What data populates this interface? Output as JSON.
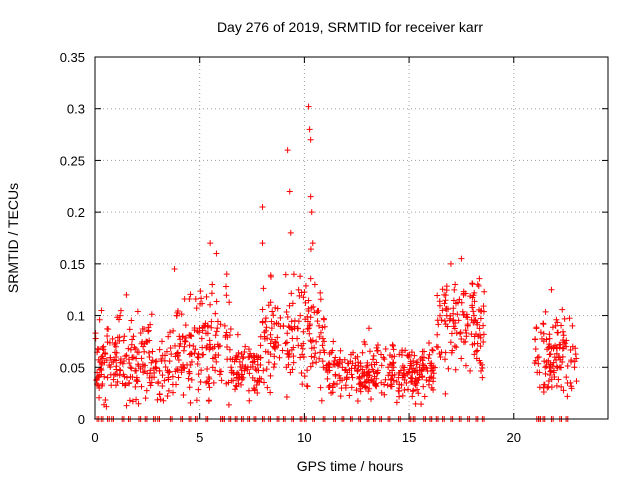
{
  "chart_data": {
    "type": "scatter",
    "title": "Day 276 of 2019, SRMTID for receiver karr",
    "xlabel": "GPS time / hours",
    "ylabel": "SRMTID / TECUs",
    "xlim": [
      0,
      24.5
    ],
    "ylim": [
      0,
      0.35
    ],
    "xticks": [
      0,
      5,
      10,
      15,
      20
    ],
    "xtick_labels": [
      "0",
      "5",
      "10",
      "15",
      "20"
    ],
    "yticks": [
      0,
      0.05,
      0.1,
      0.15,
      0.2,
      0.25,
      0.3,
      0.35
    ],
    "ytick_labels": [
      "0",
      "0.05",
      "0.1",
      "0.15",
      "0.2",
      "0.25",
      "0.3",
      "0.35"
    ],
    "grid": true,
    "marker": "+",
    "series": [
      {
        "name": "SRMTID",
        "color": "#ff0000",
        "points": [
          [
            0.1,
            0.045
          ],
          [
            0.2,
            0.03
          ],
          [
            0.3,
            0.06
          ],
          [
            0.4,
            0.07
          ],
          [
            0.6,
            0.04
          ],
          [
            0.8,
            0.055
          ],
          [
            1.0,
            0.06
          ],
          [
            1.2,
            0.1
          ],
          [
            1.4,
            0.08
          ],
          [
            1.5,
            0.12
          ],
          [
            1.7,
            0.05
          ],
          [
            2.0,
            0.04
          ],
          [
            2.3,
            0.07
          ],
          [
            2.6,
            0.06
          ],
          [
            2.9,
            0.05
          ],
          [
            3.2,
            0.075
          ],
          [
            3.5,
            0.04
          ],
          [
            3.8,
            0.145
          ],
          [
            3.9,
            0.1
          ],
          [
            4.2,
            0.05
          ],
          [
            4.6,
            0.08
          ],
          [
            4.9,
            0.06
          ],
          [
            5.2,
            0.09
          ],
          [
            5.5,
            0.17
          ],
          [
            5.6,
            0.13
          ],
          [
            5.8,
            0.16
          ],
          [
            6.2,
            0.09
          ],
          [
            6.5,
            0.05
          ],
          [
            6.9,
            0.04
          ],
          [
            7.3,
            0.05
          ],
          [
            7.8,
            0.06
          ],
          [
            8.0,
            0.205
          ],
          [
            8.0,
            0.17
          ],
          [
            8.3,
            0.11
          ],
          [
            8.6,
            0.07
          ],
          [
            9.0,
            0.09
          ],
          [
            9.2,
            0.26
          ],
          [
            9.3,
            0.22
          ],
          [
            9.35,
            0.18
          ],
          [
            9.5,
            0.14
          ],
          [
            9.8,
            0.1
          ],
          [
            10.2,
            0.302
          ],
          [
            10.25,
            0.28
          ],
          [
            10.3,
            0.27
          ],
          [
            10.3,
            0.215
          ],
          [
            10.35,
            0.2
          ],
          [
            10.4,
            0.17
          ],
          [
            10.5,
            0.13
          ],
          [
            10.7,
            0.09
          ],
          [
            11.2,
            0.05
          ],
          [
            11.8,
            0.055
          ],
          [
            12.3,
            0.04
          ],
          [
            12.9,
            0.035
          ],
          [
            13.5,
            0.045
          ],
          [
            14.0,
            0.05
          ],
          [
            14.5,
            0.04
          ],
          [
            15.0,
            0.045
          ],
          [
            15.5,
            0.05
          ],
          [
            16.0,
            0.04
          ],
          [
            16.5,
            0.06
          ],
          [
            16.8,
            0.1
          ],
          [
            17.0,
            0.15
          ],
          [
            17.2,
            0.13
          ],
          [
            17.5,
            0.155
          ],
          [
            17.6,
            0.12
          ],
          [
            17.8,
            0.09
          ],
          [
            18.1,
            0.1
          ],
          [
            18.3,
            0.08
          ],
          [
            18.5,
            0.04
          ],
          [
            21.2,
            0.06
          ],
          [
            21.5,
            0.05
          ],
          [
            21.8,
            0.125
          ],
          [
            22.0,
            0.09
          ],
          [
            22.2,
            0.05
          ],
          [
            22.5,
            0.07
          ],
          [
            22.8,
            0.09
          ],
          [
            22.9,
            0.05
          ]
        ],
        "envelope": [
          {
            "x_range": [
              0.0,
              4.0
            ],
            "level": 0.055,
            "spread": 0.03
          },
          {
            "x_range": [
              4.0,
              6.5
            ],
            "level": 0.07,
            "spread": 0.035
          },
          {
            "x_range": [
              6.5,
              8.0
            ],
            "level": 0.05,
            "spread": 0.02
          },
          {
            "x_range": [
              8.0,
              11.0
            ],
            "level": 0.08,
            "spread": 0.035
          },
          {
            "x_range": [
              11.0,
              16.3
            ],
            "level": 0.045,
            "spread": 0.018
          },
          {
            "x_range": [
              16.3,
              18.6
            ],
            "level": 0.085,
            "spread": 0.035
          },
          {
            "x_range": [
              21.0,
              23.0
            ],
            "level": 0.06,
            "spread": 0.025
          }
        ],
        "zero_markers_x": [
          0.1,
          0.3,
          0.6,
          0.8,
          1.3,
          1.6,
          2.1,
          2.4,
          2.8,
          3.0,
          3.6,
          4.1,
          4.5,
          4.8,
          5.3,
          6.0,
          6.1,
          6.4,
          6.7,
          7.0,
          7.3,
          7.6,
          8.0,
          8.3,
          8.7,
          9.0,
          9.4,
          9.8,
          10.0,
          10.4,
          10.9,
          11.4,
          11.8,
          12.2,
          12.6,
          13.0,
          13.3,
          13.6,
          14.0,
          14.5,
          15.0,
          15.2,
          15.7,
          16.0,
          16.3,
          16.6,
          17.0,
          17.4,
          17.8,
          18.2,
          18.5,
          21.1,
          21.2,
          21.4,
          21.8,
          22.2,
          22.5
        ]
      }
    ]
  }
}
